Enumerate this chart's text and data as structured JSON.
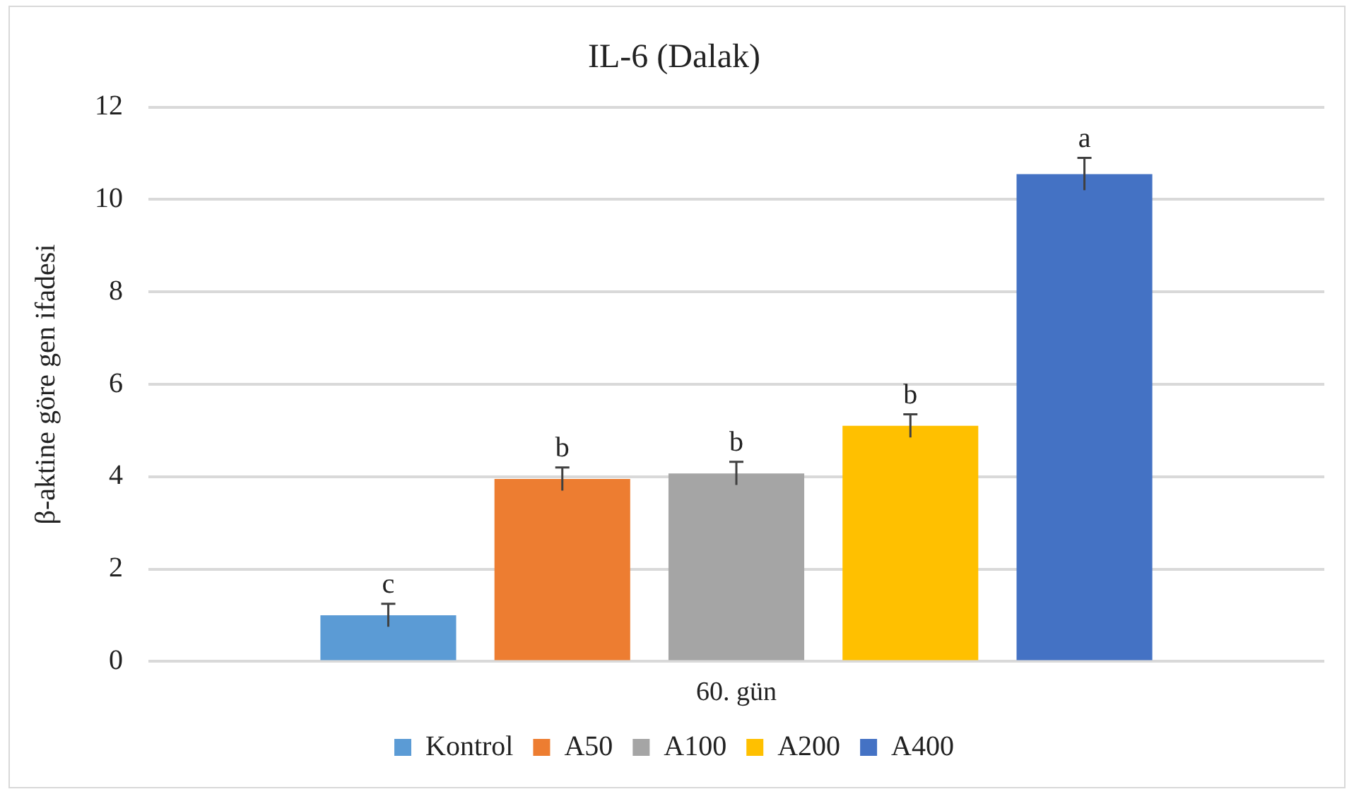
{
  "chart_data": {
    "type": "bar",
    "title": "IL-6 (Dalak)",
    "ylabel": "β-aktine göre gen ifadesi",
    "categories": [
      "60. gün"
    ],
    "series": [
      {
        "name": "Kontrol",
        "color": "#5b9bd5",
        "values": [
          1.0
        ],
        "errors": [
          0.25
        ],
        "value_labels": [
          "c"
        ]
      },
      {
        "name": "A50",
        "color": "#ed7d31",
        "values": [
          3.95
        ],
        "errors": [
          0.25
        ],
        "value_labels": [
          "b"
        ]
      },
      {
        "name": "A100",
        "color": "#a5a5a5",
        "values": [
          4.07
        ],
        "errors": [
          0.25
        ],
        "value_labels": [
          "b"
        ]
      },
      {
        "name": "A200",
        "color": "#ffc000",
        "values": [
          5.1
        ],
        "errors": [
          0.25
        ],
        "value_labels": [
          "b"
        ]
      },
      {
        "name": "A400",
        "color": "#4472c4",
        "values": [
          10.55
        ],
        "errors": [
          0.35
        ],
        "value_labels": [
          "a"
        ]
      }
    ],
    "ylim": [
      0,
      12
    ],
    "yticks": [
      0,
      2,
      4,
      6,
      8,
      10,
      12
    ],
    "grid": "y",
    "legend": "bottom"
  }
}
